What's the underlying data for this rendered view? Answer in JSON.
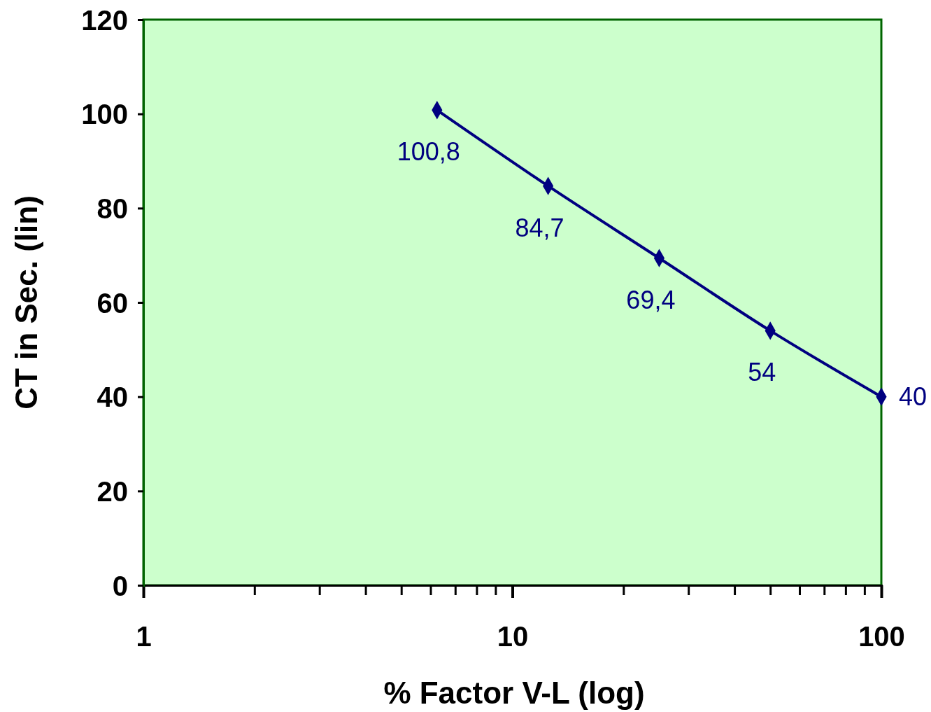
{
  "chart_data": {
    "type": "line",
    "xlabel": "% Factor V-L (log)",
    "ylabel": "CT in Sec. (lin)",
    "x": [
      6.25,
      12.5,
      25,
      50,
      100
    ],
    "series": [
      {
        "color": "#000080",
        "values": [
          100.8,
          84.7,
          69.4,
          54,
          40
        ],
        "value_labels": [
          "100,8",
          "84,7",
          "69,4",
          "54",
          "40"
        ]
      }
    ],
    "log": "x",
    "marker": "diamond",
    "line_style": "solid",
    "grid": false,
    "xlim": [
      1,
      100
    ],
    "xticks": [
      1,
      {
        "value": 2,
        "label": null
      },
      {
        "value": 3,
        "label": null
      },
      {
        "value": 4,
        "label": null
      },
      {
        "value": 5,
        "label": null
      },
      {
        "value": 6,
        "label": null
      },
      {
        "value": 7,
        "label": null
      },
      {
        "value": 8,
        "label": null
      },
      {
        "value": 9,
        "label": null
      },
      10,
      {
        "value": 20,
        "label": null
      },
      {
        "value": 30,
        "label": null
      },
      {
        "value": 40,
        "label": null
      },
      {
        "value": 50,
        "label": null
      },
      {
        "value": 60,
        "label": null
      },
      {
        "value": 70,
        "label": null
      },
      {
        "value": 80,
        "label": null
      },
      {
        "value": 90,
        "label": null
      },
      100
    ],
    "ylim": [
      0,
      120
    ],
    "yticks": [
      0,
      20,
      40,
      60,
      80,
      100,
      120
    ]
  }
}
